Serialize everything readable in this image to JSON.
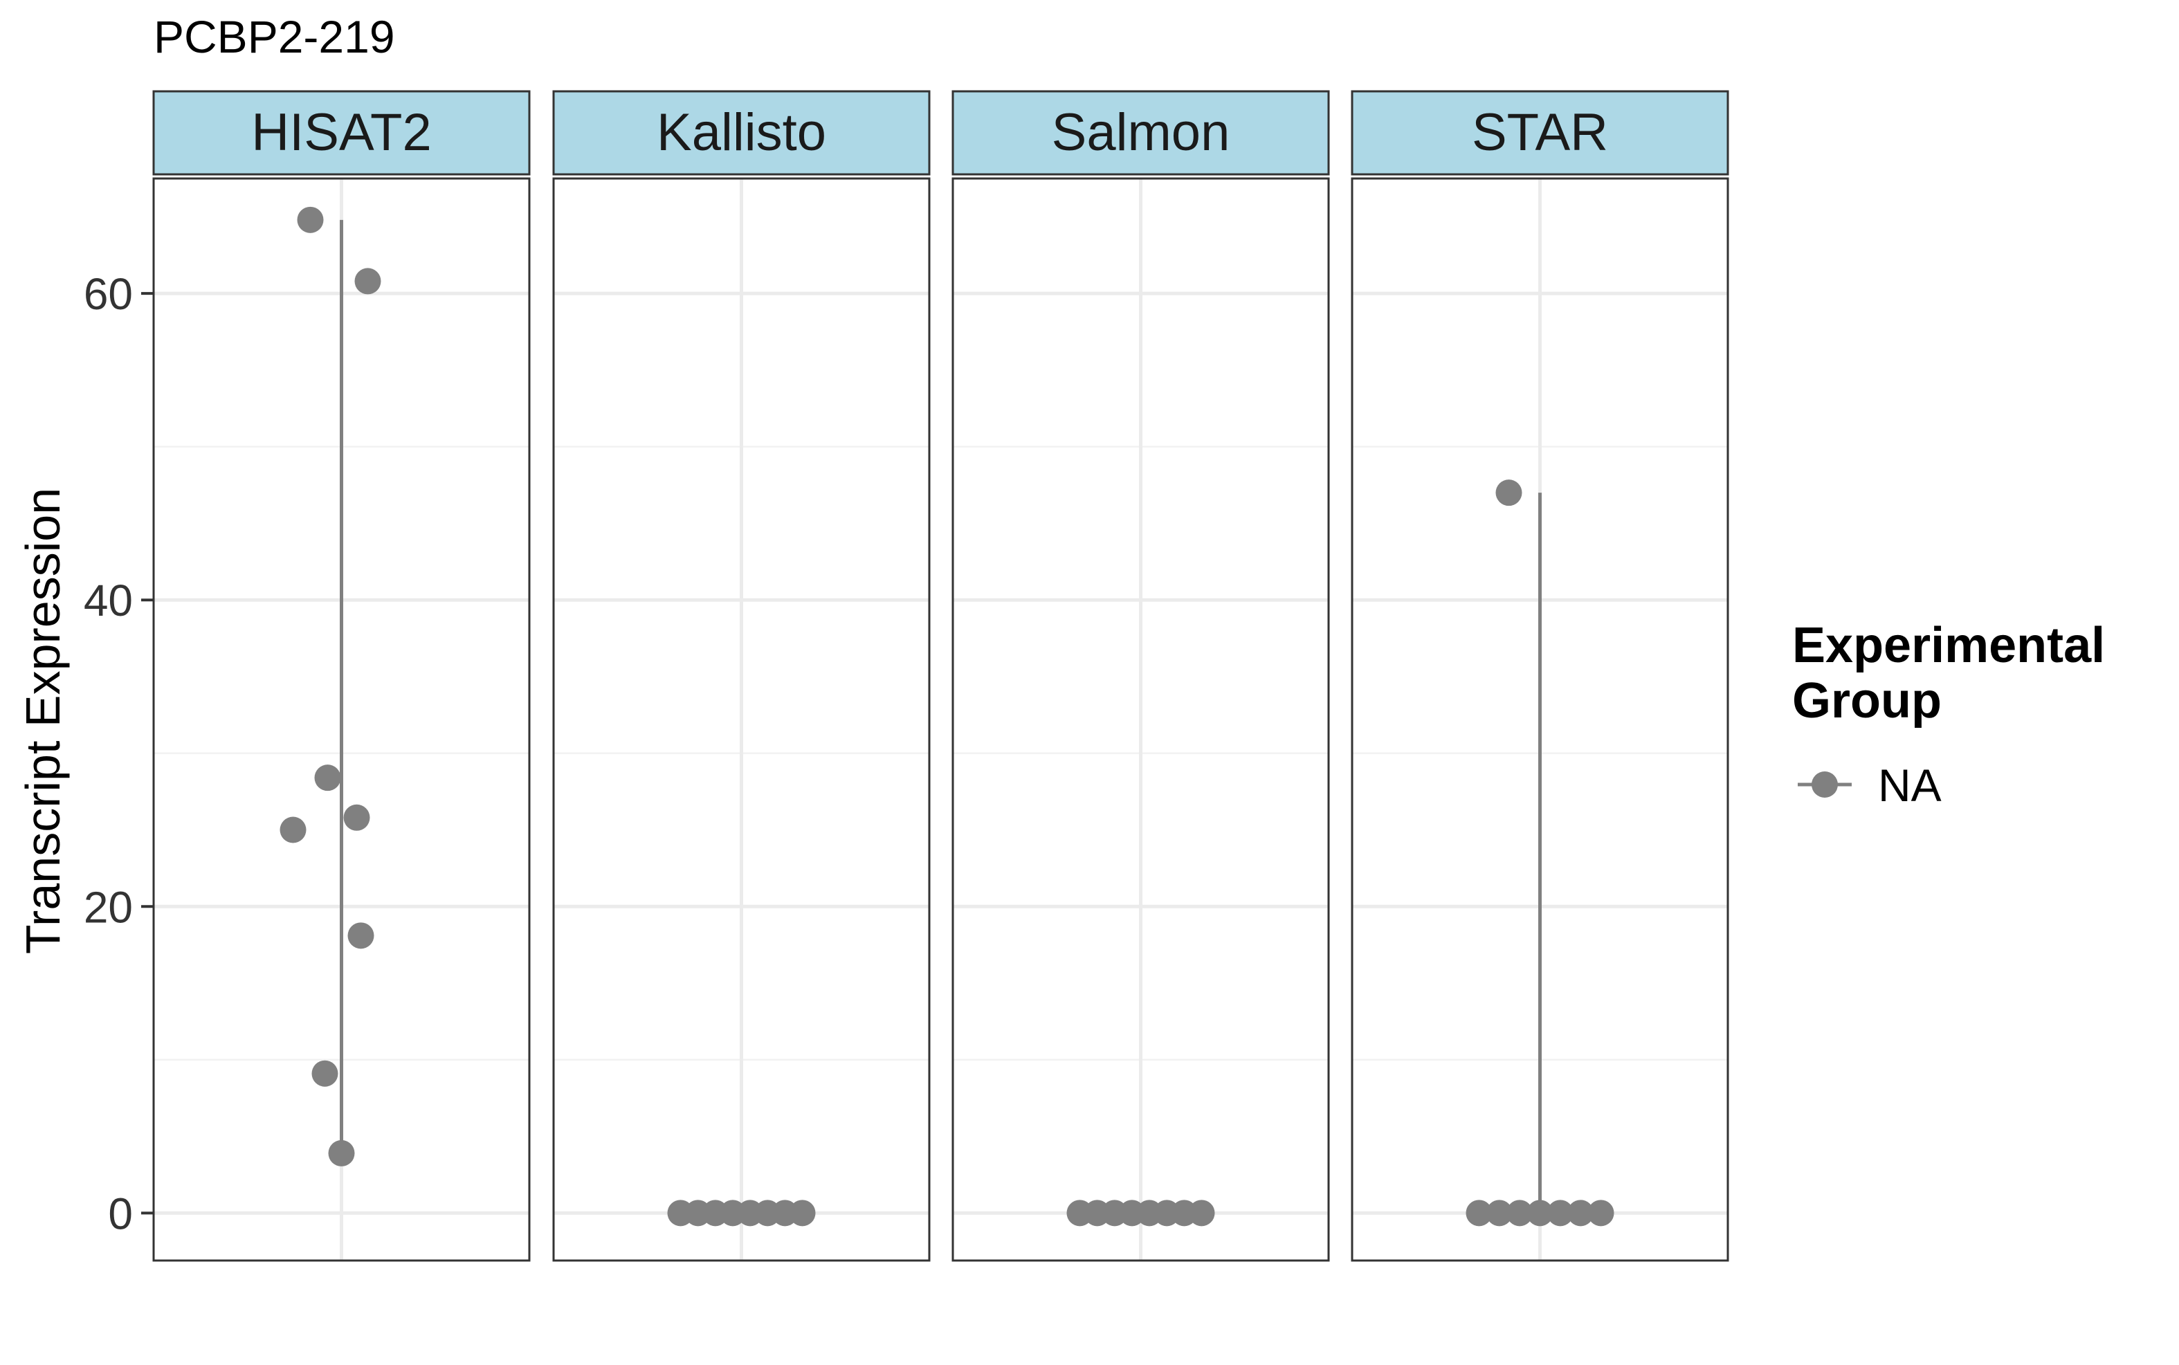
{
  "chart_data": {
    "type": "scatter",
    "title": "PCBP2-219",
    "xlabel": "",
    "ylabel": "Transcript Expression",
    "ylim": [
      -3.1,
      67.5
    ],
    "yticks": [
      0,
      20,
      40,
      60
    ],
    "grid": true,
    "facets": [
      "HISAT2",
      "Kallisto",
      "Salmon",
      "STAR"
    ],
    "legend": {
      "title_lines": [
        "Experimental",
        "Group"
      ],
      "entries": [
        "NA"
      ],
      "placement": "right"
    },
    "series": [
      {
        "facet": "HISAT2",
        "values": [
          64.8,
          60.8,
          28.4,
          25.8,
          25.0,
          18.1,
          9.1,
          3.9
        ],
        "range": [
          3.9,
          64.8
        ]
      },
      {
        "facet": "Kallisto",
        "values": [
          0,
          0,
          0,
          0,
          0,
          0,
          0,
          0
        ],
        "range": [
          0,
          0
        ]
      },
      {
        "facet": "Salmon",
        "values": [
          0,
          0,
          0,
          0,
          0,
          0,
          0,
          0
        ],
        "range": [
          0,
          0
        ]
      },
      {
        "facet": "STAR",
        "values": [
          47.0,
          0,
          0,
          0,
          0,
          0,
          0,
          0
        ],
        "range": [
          0,
          47.0
        ]
      }
    ],
    "colors": {
      "point": "#808080",
      "strip_fill": "#ADD8E6",
      "panel_border": "#333333",
      "grid_major": "#EBEBEB",
      "grid_minor": "#F2F2F2"
    }
  }
}
